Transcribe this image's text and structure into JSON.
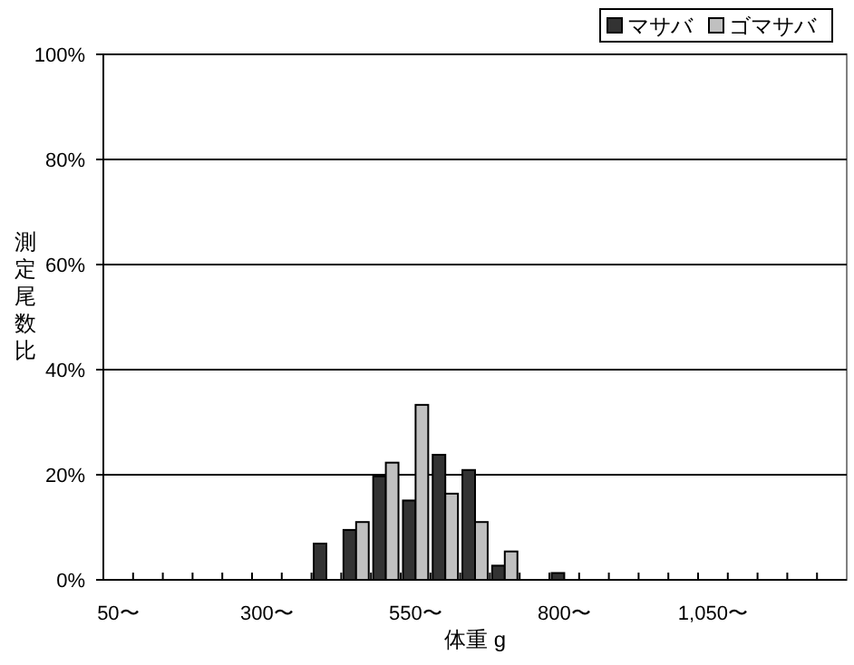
{
  "chart_data": {
    "type": "bar",
    "xlabel": "体重 g",
    "ylabel": "測定尾数比",
    "categories": [
      "50〜",
      null,
      null,
      null,
      null,
      "300〜",
      null,
      null,
      null,
      null,
      "550〜",
      null,
      null,
      null,
      null,
      "800〜",
      null,
      null,
      null,
      null,
      "1,050〜",
      null,
      null,
      null,
      null
    ],
    "series": [
      {
        "name": "マサバ",
        "color": "#333333",
        "values": [
          0,
          0,
          0,
          0,
          0,
          0,
          0,
          6.9,
          9.5,
          19.7,
          15.1,
          23.8,
          20.9,
          2.7,
          0,
          1.3,
          0,
          0,
          0,
          0,
          0,
          0,
          0,
          0,
          0
        ]
      },
      {
        "name": "ゴマサバ",
        "color": "#c0c0c0",
        "values": [
          0,
          0,
          0,
          0,
          0,
          0,
          0,
          0,
          11,
          22.3,
          33.3,
          16.4,
          11,
          5.4,
          0,
          0,
          0,
          0,
          0,
          0,
          0,
          0,
          0,
          0,
          0
        ]
      }
    ],
    "ylim": [
      0,
      100
    ],
    "yticks": [
      {
        "value": 0,
        "label": "0%"
      },
      {
        "value": 20,
        "label": "20%"
      },
      {
        "value": 40,
        "label": "40%"
      },
      {
        "value": 60,
        "label": "60%"
      },
      {
        "value": 80,
        "label": "80%"
      },
      {
        "value": 100,
        "label": "100%"
      }
    ],
    "grid": "y",
    "legend": "top right"
  }
}
